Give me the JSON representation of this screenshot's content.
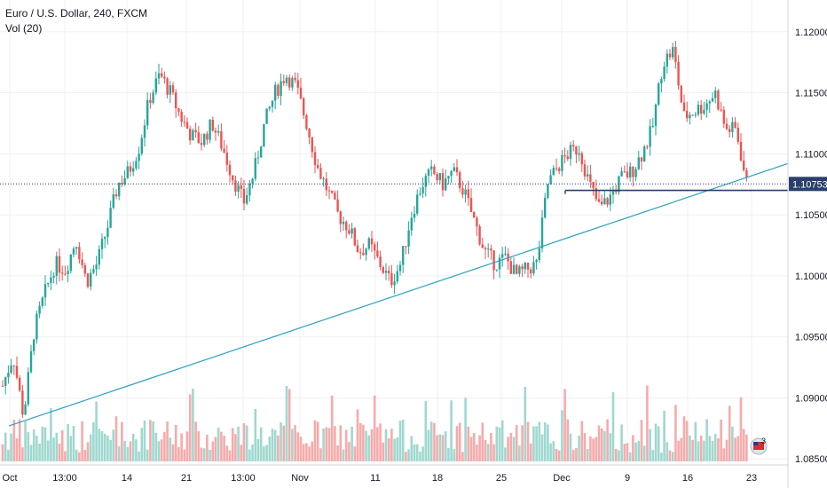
{
  "legend": {
    "symbol": "Euro / U.S. Dollar, 240, FXCM",
    "volume": "Vol (20)"
  },
  "colors": {
    "up": "#26a69a",
    "down": "#ef5350",
    "grid": "#eef0f3",
    "trendline": "#2aa1c0",
    "hline": "#2a3f6b",
    "last_price": "#2a3f6b",
    "vol_up": "#9fd8d0",
    "vol_down": "#f7aaaa"
  },
  "badge": {
    "count": "3",
    "icon": "us-flag-calendar-icon"
  },
  "chart_data": {
    "type": "candlestick",
    "symbol": "Euro / U.S. Dollar",
    "interval": "240",
    "source": "FXCM",
    "y_ticks": [
      "1.12000",
      "1.11500",
      "1.11000",
      "1.10500",
      "1.10000",
      "1.09500",
      "1.09000",
      "1.08500"
    ],
    "ylim": [
      1.0848,
      1.1226
    ],
    "x_ticks": [
      "Oct",
      "13:00",
      "14",
      "21",
      "13:00",
      "Nov",
      "11",
      "18",
      "25",
      "Dec",
      "9",
      "16",
      "23"
    ],
    "last_price": 1.10753,
    "last_price_label": "1.10753",
    "horizontal_line": 1.107,
    "trendline": {
      "start": 1.0877,
      "end": 1.1092
    },
    "price_path": [
      1.091,
      1.0935,
      1.0885,
      1.0955,
      1.0985,
      1.101,
      1.1005,
      1.103,
      1.0995,
      1.101,
      1.104,
      1.1075,
      1.1085,
      1.1105,
      1.1145,
      1.1165,
      1.115,
      1.113,
      1.1115,
      1.111,
      1.1125,
      1.1105,
      1.108,
      1.106,
      1.1085,
      1.1125,
      1.115,
      1.1165,
      1.1155,
      1.1125,
      1.109,
      1.107,
      1.105,
      1.104,
      1.102,
      1.1025,
      1.101,
      1.0995,
      1.101,
      1.105,
      1.1075,
      1.1085,
      1.1075,
      1.1085,
      1.107,
      1.1045,
      1.102,
      1.101,
      1.1015,
      1.1,
      1.1005,
      1.101,
      1.1075,
      1.109,
      1.11,
      1.1105,
      1.1075,
      1.1055,
      1.1065,
      1.108,
      1.1085,
      1.11,
      1.112,
      1.1175,
      1.1185,
      1.113,
      1.1135,
      1.114,
      1.115,
      1.112,
      1.112,
      1.1075
    ],
    "volume": "Vol (20)"
  }
}
